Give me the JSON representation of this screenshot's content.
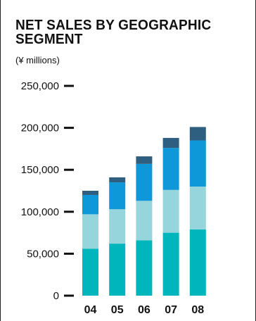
{
  "chart_data": {
    "type": "bar",
    "stacked": true,
    "title": "NET SALES BY GEOGRAPHIC SEGMENT",
    "subtitle": "(¥ millions)",
    "categories": [
      "04",
      "05",
      "06",
      "07",
      "08"
    ],
    "ylim": [
      0,
      250000
    ],
    "yticks": [
      "250,000",
      "200,000",
      "150,000",
      "100,000",
      "50,000",
      "0"
    ],
    "ytick_values": [
      250000,
      200000,
      150000,
      100000,
      50000,
      0
    ],
    "grid": false,
    "legend": "none",
    "series": [
      {
        "values": [
          56000,
          62000,
          66000,
          75000,
          79000
        ],
        "color": "#00b6bd"
      },
      {
        "values": [
          41000,
          41000,
          47000,
          51000,
          51000
        ],
        "color": "#96d5db"
      },
      {
        "values": [
          23000,
          32000,
          44000,
          50000,
          55000
        ],
        "color": "#0f98d9"
      },
      {
        "values": [
          5000,
          6000,
          9000,
          12000,
          16000
        ],
        "color": "#2f5f80"
      }
    ]
  }
}
